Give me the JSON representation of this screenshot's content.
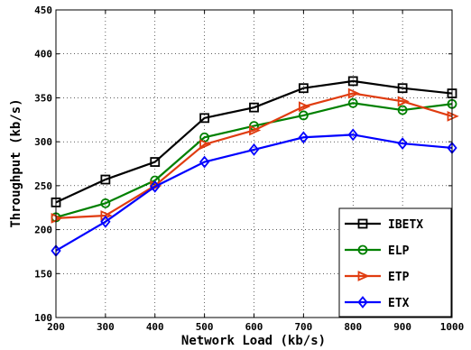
{
  "chart_data": {
    "type": "line",
    "xlabel": "Network Load (kb/s)",
    "ylabel": "Throughput (kb/s)",
    "x": [
      200,
      300,
      400,
      500,
      600,
      700,
      800,
      900,
      1000
    ],
    "xlim": [
      200,
      1000
    ],
    "ylim": [
      100,
      450
    ],
    "xticks": [
      "200",
      "300",
      "400",
      "500",
      "600",
      "700",
      "800",
      "900",
      "1000"
    ],
    "yticks": [
      "100",
      "150",
      "200",
      "250",
      "300",
      "350",
      "400",
      "450"
    ],
    "grid": true,
    "legend_position": "bottom-right",
    "series": [
      {
        "name": "IBETX",
        "color": "#000000",
        "marker": "square",
        "values": [
          231,
          257,
          277,
          327,
          339,
          361,
          369,
          361,
          355
        ]
      },
      {
        "name": "ELP",
        "color": "#008000",
        "marker": "circle",
        "values": [
          214,
          230,
          256,
          305,
          318,
          330,
          344,
          336,
          343
        ]
      },
      {
        "name": "ETP",
        "color": "#e03c10",
        "marker": "triangle-right",
        "values": [
          213,
          216,
          250,
          297,
          313,
          340,
          355,
          346,
          329
        ]
      },
      {
        "name": "ETX",
        "color": "#0000ff",
        "marker": "diamond",
        "values": [
          176,
          209,
          249,
          277,
          291,
          305,
          308,
          298,
          293
        ]
      }
    ]
  }
}
